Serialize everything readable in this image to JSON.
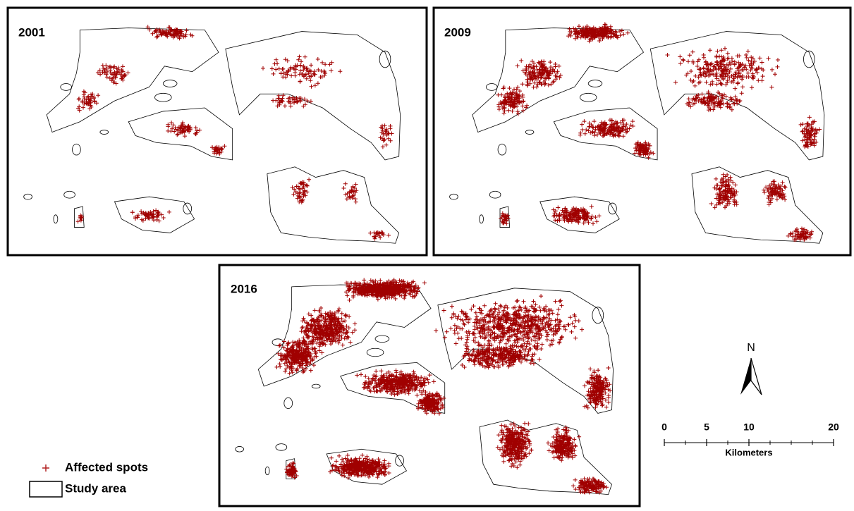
{
  "panels": [
    {
      "label": "2001"
    },
    {
      "label": "2009"
    },
    {
      "label": "2016"
    }
  ],
  "legend": {
    "affected": "Affected spots",
    "study_area": "Study area"
  },
  "north_arrow": {
    "label": "N"
  },
  "scale_bar": {
    "ticks": [
      0,
      5,
      10,
      20
    ],
    "unit": "Kilometers"
  }
}
